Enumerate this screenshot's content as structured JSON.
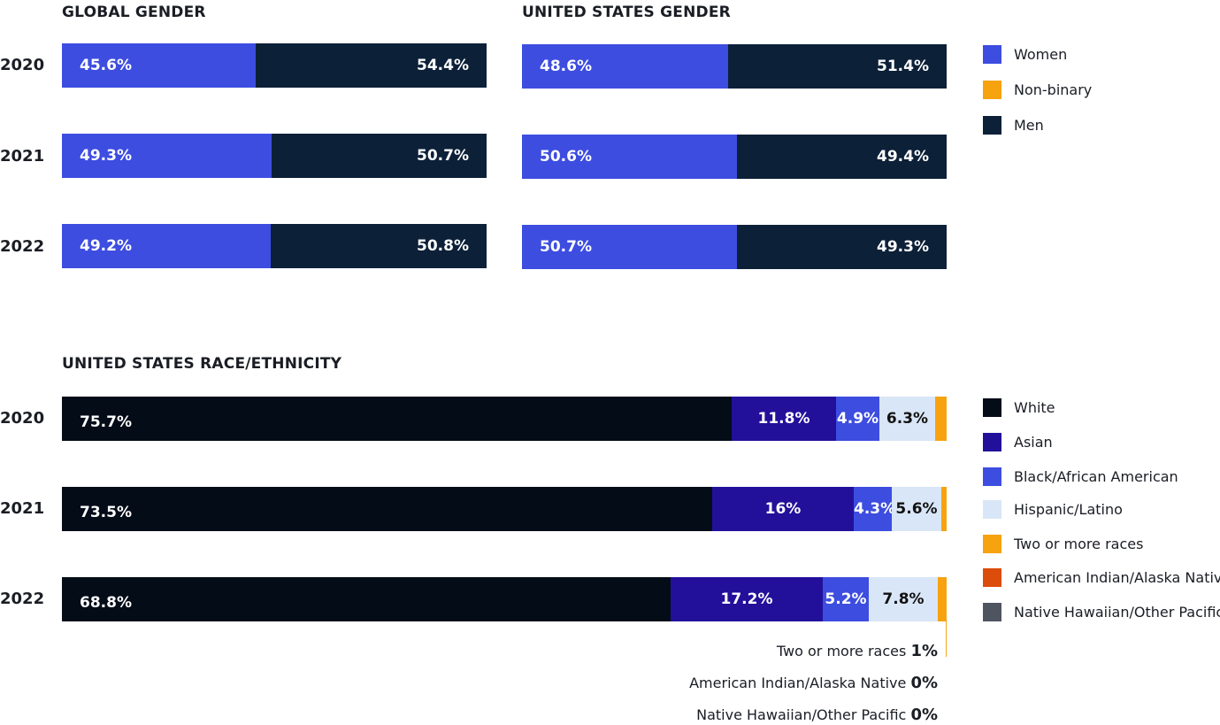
{
  "colors": {
    "women": "#3d4de0",
    "nonbinary": "#f7a20f",
    "men": "#0c2038",
    "white": "#040c18",
    "asian": "#22109b",
    "black": "#3d4de0",
    "hispanic": "#d9e6f7",
    "two_or_more": "#f7a20f",
    "american_indian": "#dc4c0a",
    "native_hawaiian": "#4e5560"
  },
  "chart_data": [
    {
      "type": "bar",
      "orientation": "horizontal",
      "stacked": true,
      "title": "GLOBAL GENDER",
      "categories": [
        "2020",
        "2021",
        "2022"
      ],
      "series": [
        {
          "name": "Women",
          "values": [
            45.6,
            49.3,
            49.2
          ],
          "labels": [
            "45.6%",
            "49.3%",
            "49.2%"
          ]
        },
        {
          "name": "Non-binary",
          "values": [
            0,
            0,
            0
          ],
          "labels": [
            "0%",
            "0%",
            "0%"
          ]
        },
        {
          "name": "Men",
          "values": [
            54.4,
            50.7,
            50.8
          ],
          "labels": [
            "54.4%",
            "50.7%",
            "50.8%"
          ]
        }
      ]
    },
    {
      "type": "bar",
      "orientation": "horizontal",
      "stacked": true,
      "title": "UNITED STATES GENDER",
      "categories": [
        "2020",
        "2021",
        "2022"
      ],
      "series": [
        {
          "name": "Women",
          "values": [
            48.6,
            50.6,
            50.7
          ],
          "labels": [
            "48.6%",
            "50.6%",
            "50.7%"
          ]
        },
        {
          "name": "Non-binary",
          "values": [
            0,
            0,
            0
          ],
          "labels": [
            "0%",
            "0%",
            "0%"
          ]
        },
        {
          "name": "Men",
          "values": [
            51.4,
            49.4,
            49.3
          ],
          "labels": [
            "51.4%",
            "49.4%",
            "49.3%"
          ]
        }
      ],
      "legend": [
        "Women",
        "Non-binary",
        "Men"
      ],
      "legend_position": "right"
    },
    {
      "type": "bar",
      "orientation": "horizontal",
      "stacked": true,
      "title": "UNITED STATES RACE/ETHNICITY",
      "categories": [
        "2020",
        "2021",
        "2022"
      ],
      "series": [
        {
          "name": "White",
          "values": [
            75.7,
            73.5,
            68.8
          ],
          "labels": [
            "75.7%",
            "73.5%",
            "68.8%"
          ]
        },
        {
          "name": "Asian",
          "values": [
            11.8,
            16,
            17.2
          ],
          "labels": [
            "11.8%",
            "16%",
            "17.2%"
          ]
        },
        {
          "name": "Black/African American",
          "values": [
            4.9,
            4.3,
            5.2
          ],
          "labels": [
            "4.9%",
            "4.3%",
            "5.2%"
          ]
        },
        {
          "name": "Hispanic/Latino",
          "values": [
            6.3,
            5.6,
            7.8
          ],
          "labels": [
            "6.3%",
            "5.6%",
            "7.8%"
          ]
        },
        {
          "name": "Two or more races",
          "values": [
            1.3,
            0.6,
            1
          ],
          "labels": [
            "",
            "",
            ""
          ]
        },
        {
          "name": "American Indian/Alaska Native",
          "values": [
            0,
            0,
            0
          ],
          "labels": [
            "",
            "",
            ""
          ]
        },
        {
          "name": "Native Hawaiian/Other Pacific",
          "values": [
            0,
            0,
            0
          ],
          "labels": [
            "",
            "",
            ""
          ]
        }
      ],
      "legend": [
        "White",
        "Asian",
        "Black/African American",
        "Hispanic/Latino",
        "Two or more races",
        "American Indian/Alaska Native",
        "Native Hawaiian/Other Pacific"
      ],
      "legend_position": "right",
      "annotations": [
        {
          "text": "Two or more races",
          "value": "1%"
        },
        {
          "text": "American Indian/Alaska Native",
          "value": "0%"
        },
        {
          "text": "Native Hawaiian/Other Pacific",
          "value": "0%"
        }
      ]
    }
  ]
}
